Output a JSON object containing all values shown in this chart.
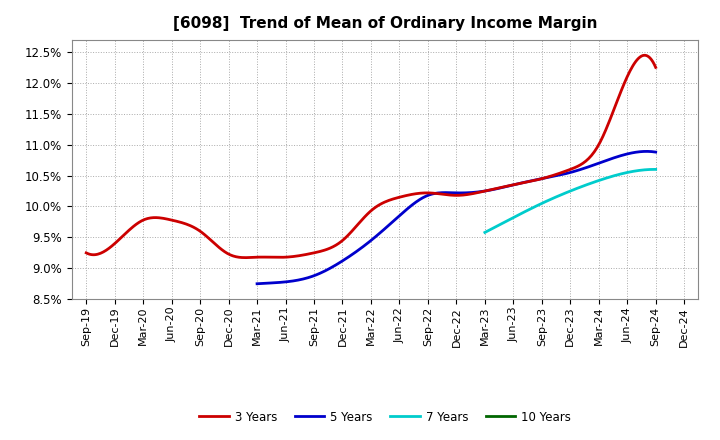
{
  "title": "[6098]  Trend of Mean of Ordinary Income Margin",
  "title_fontsize": 11,
  "ylim": [
    0.085,
    0.127
  ],
  "yticks": [
    0.085,
    0.09,
    0.095,
    0.1,
    0.105,
    0.11,
    0.115,
    0.12,
    0.125
  ],
  "background_color": "#ffffff",
  "grid_color": "#aaaaaa",
  "x_labels": [
    "Sep-19",
    "Dec-19",
    "Mar-20",
    "Jun-20",
    "Sep-20",
    "Dec-20",
    "Mar-21",
    "Jun-21",
    "Sep-21",
    "Dec-21",
    "Mar-22",
    "Jun-22",
    "Sep-22",
    "Dec-22",
    "Mar-23",
    "Jun-23",
    "Sep-23",
    "Dec-23",
    "Mar-24",
    "Jun-24",
    "Sep-24",
    "Dec-24"
  ],
  "series_3y": {
    "label": "3 Years",
    "color": "#cc0000",
    "x": [
      0,
      1,
      2,
      3,
      4,
      5,
      6,
      7,
      8,
      9,
      10,
      11,
      12,
      13,
      14,
      15,
      16,
      17,
      18,
      19,
      20
    ],
    "y": [
      0.0925,
      0.094,
      0.0978,
      0.0978,
      0.096,
      0.0923,
      0.0918,
      0.0918,
      0.0925,
      0.0945,
      0.0993,
      0.1015,
      0.1022,
      0.1018,
      0.1025,
      0.1035,
      0.1045,
      0.106,
      0.11,
      0.121,
      0.1225
    ]
  },
  "series_5y": {
    "label": "5 Years",
    "color": "#0000cc",
    "x": [
      6,
      7,
      8,
      9,
      10,
      11,
      12,
      13,
      14,
      15,
      16,
      17,
      18,
      19,
      20
    ],
    "y": [
      0.0875,
      0.0878,
      0.0888,
      0.0912,
      0.0945,
      0.0985,
      0.1018,
      0.1022,
      0.1025,
      0.1035,
      0.1045,
      0.1055,
      0.107,
      0.1085,
      0.1088
    ]
  },
  "series_7y": {
    "label": "7 Years",
    "color": "#00cccc",
    "x": [
      14,
      15,
      16,
      17,
      18,
      19,
      20
    ],
    "y": [
      0.0958,
      0.0982,
      0.1005,
      0.1025,
      0.1042,
      0.1055,
      0.106
    ]
  },
  "series_10y": {
    "label": "10 Years",
    "color": "#006600",
    "x": [],
    "y": []
  },
  "linewidth": 2.0
}
